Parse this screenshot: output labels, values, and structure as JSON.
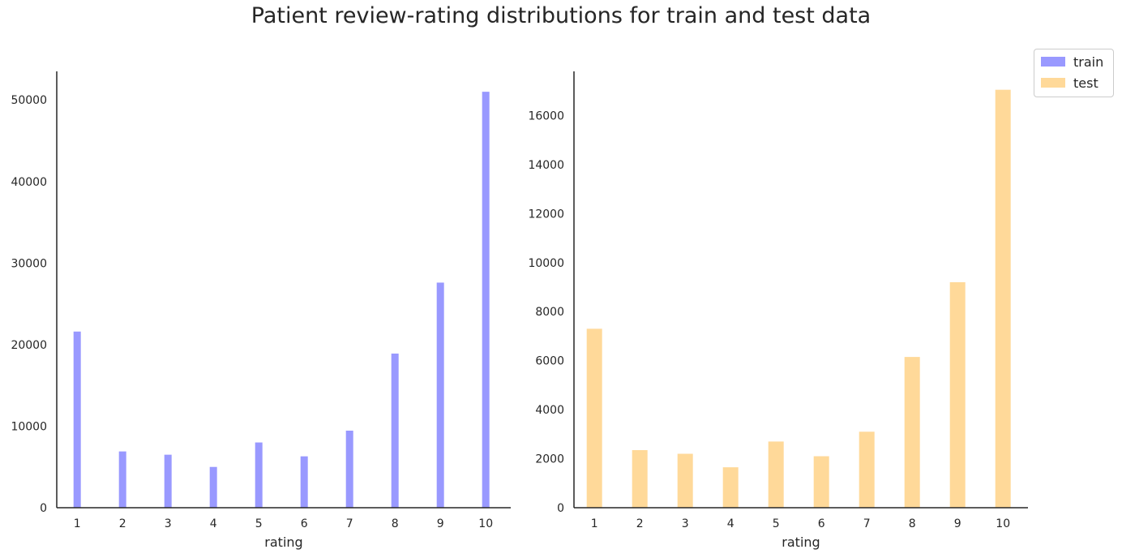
{
  "title": "Patient review-rating distributions for train and test data",
  "legend": {
    "placement": "top-right (outside)",
    "items": [
      {
        "label": "train",
        "color": "#9999ff"
      },
      {
        "label": "test",
        "color": "#ffd999"
      }
    ]
  },
  "chart_data": [
    {
      "type": "bar",
      "title": "",
      "xlabel": "rating",
      "ylabel": "",
      "color": "#9999ff",
      "series": [
        {
          "name": "train",
          "x": [
            1,
            2,
            3,
            4,
            5,
            6,
            7,
            8,
            9,
            10
          ],
          "values": [
            21600,
            6900,
            6500,
            5000,
            8000,
            6300,
            9450,
            18900,
            27600,
            51000
          ]
        }
      ],
      "xticks": [
        "1",
        "2",
        "3",
        "4",
        "5",
        "6",
        "7",
        "8",
        "9",
        "10"
      ],
      "yticks": [
        "0",
        "10000",
        "20000",
        "30000",
        "40000",
        "50000"
      ],
      "ylim": [
        0,
        53500
      ],
      "xlim": [
        0.55,
        10.55
      ],
      "grid": false
    },
    {
      "type": "bar",
      "title": "",
      "xlabel": "rating",
      "ylabel": "",
      "color": "#ffd999",
      "series": [
        {
          "name": "test",
          "x": [
            1,
            2,
            3,
            4,
            5,
            6,
            7,
            8,
            9,
            10
          ],
          "values": [
            7300,
            2350,
            2200,
            1650,
            2700,
            2100,
            3100,
            6150,
            9200,
            17050
          ]
        }
      ],
      "xticks": [
        "1",
        "2",
        "3",
        "4",
        "5",
        "6",
        "7",
        "8",
        "9",
        "10"
      ],
      "yticks": [
        "0",
        "2000",
        "4000",
        "6000",
        "8000",
        "10000",
        "12000",
        "14000",
        "16000"
      ],
      "ylim": [
        0,
        17800
      ],
      "xlim": [
        0.55,
        10.55
      ],
      "grid": false
    }
  ]
}
